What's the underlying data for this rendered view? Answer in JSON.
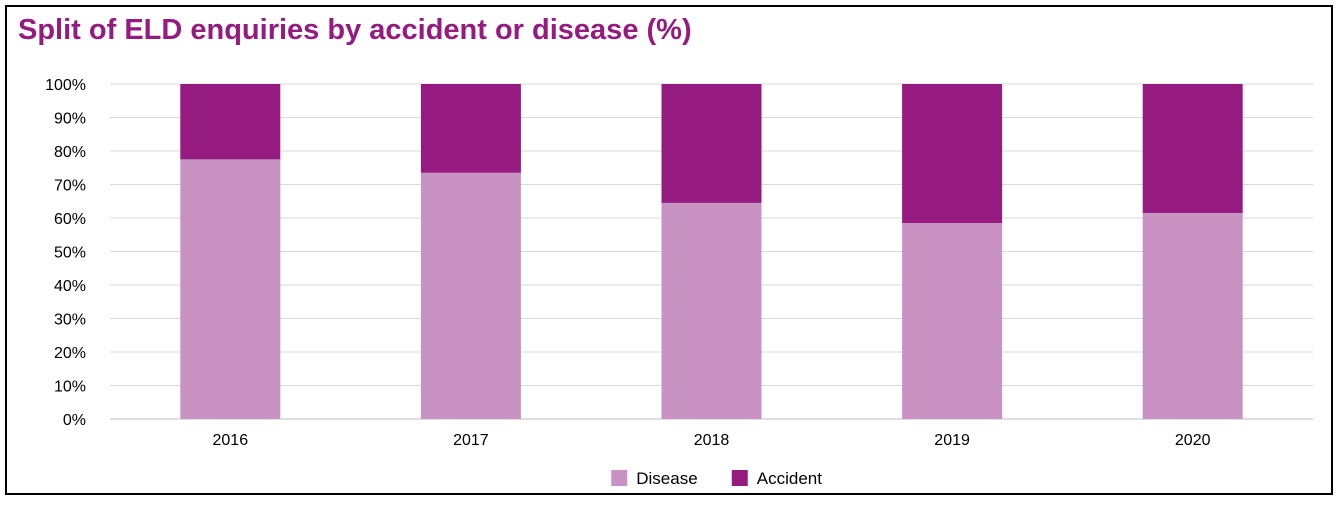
{
  "chart_data": {
    "type": "bar",
    "stacked": true,
    "title": "Split of ELD enquiries by accident or disease (%)",
    "xlabel": "",
    "ylabel": "",
    "categories": [
      "2016",
      "2017",
      "2018",
      "2019",
      "2020"
    ],
    "series": [
      {
        "name": "Disease",
        "color": "#c893c3",
        "values": [
          77.5,
          73.5,
          64.5,
          58.5,
          61.5
        ]
      },
      {
        "name": "Accident",
        "color": "#951b81",
        "values": [
          22.5,
          26.5,
          35.5,
          41.5,
          38.5
        ]
      }
    ],
    "ylim": [
      0,
      100
    ],
    "yticks": [
      "0%",
      "10%",
      "20%",
      "30%",
      "40%",
      "50%",
      "60%",
      "70%",
      "80%",
      "90%",
      "100%"
    ],
    "grid": true,
    "legend_position": "bottom-center"
  }
}
